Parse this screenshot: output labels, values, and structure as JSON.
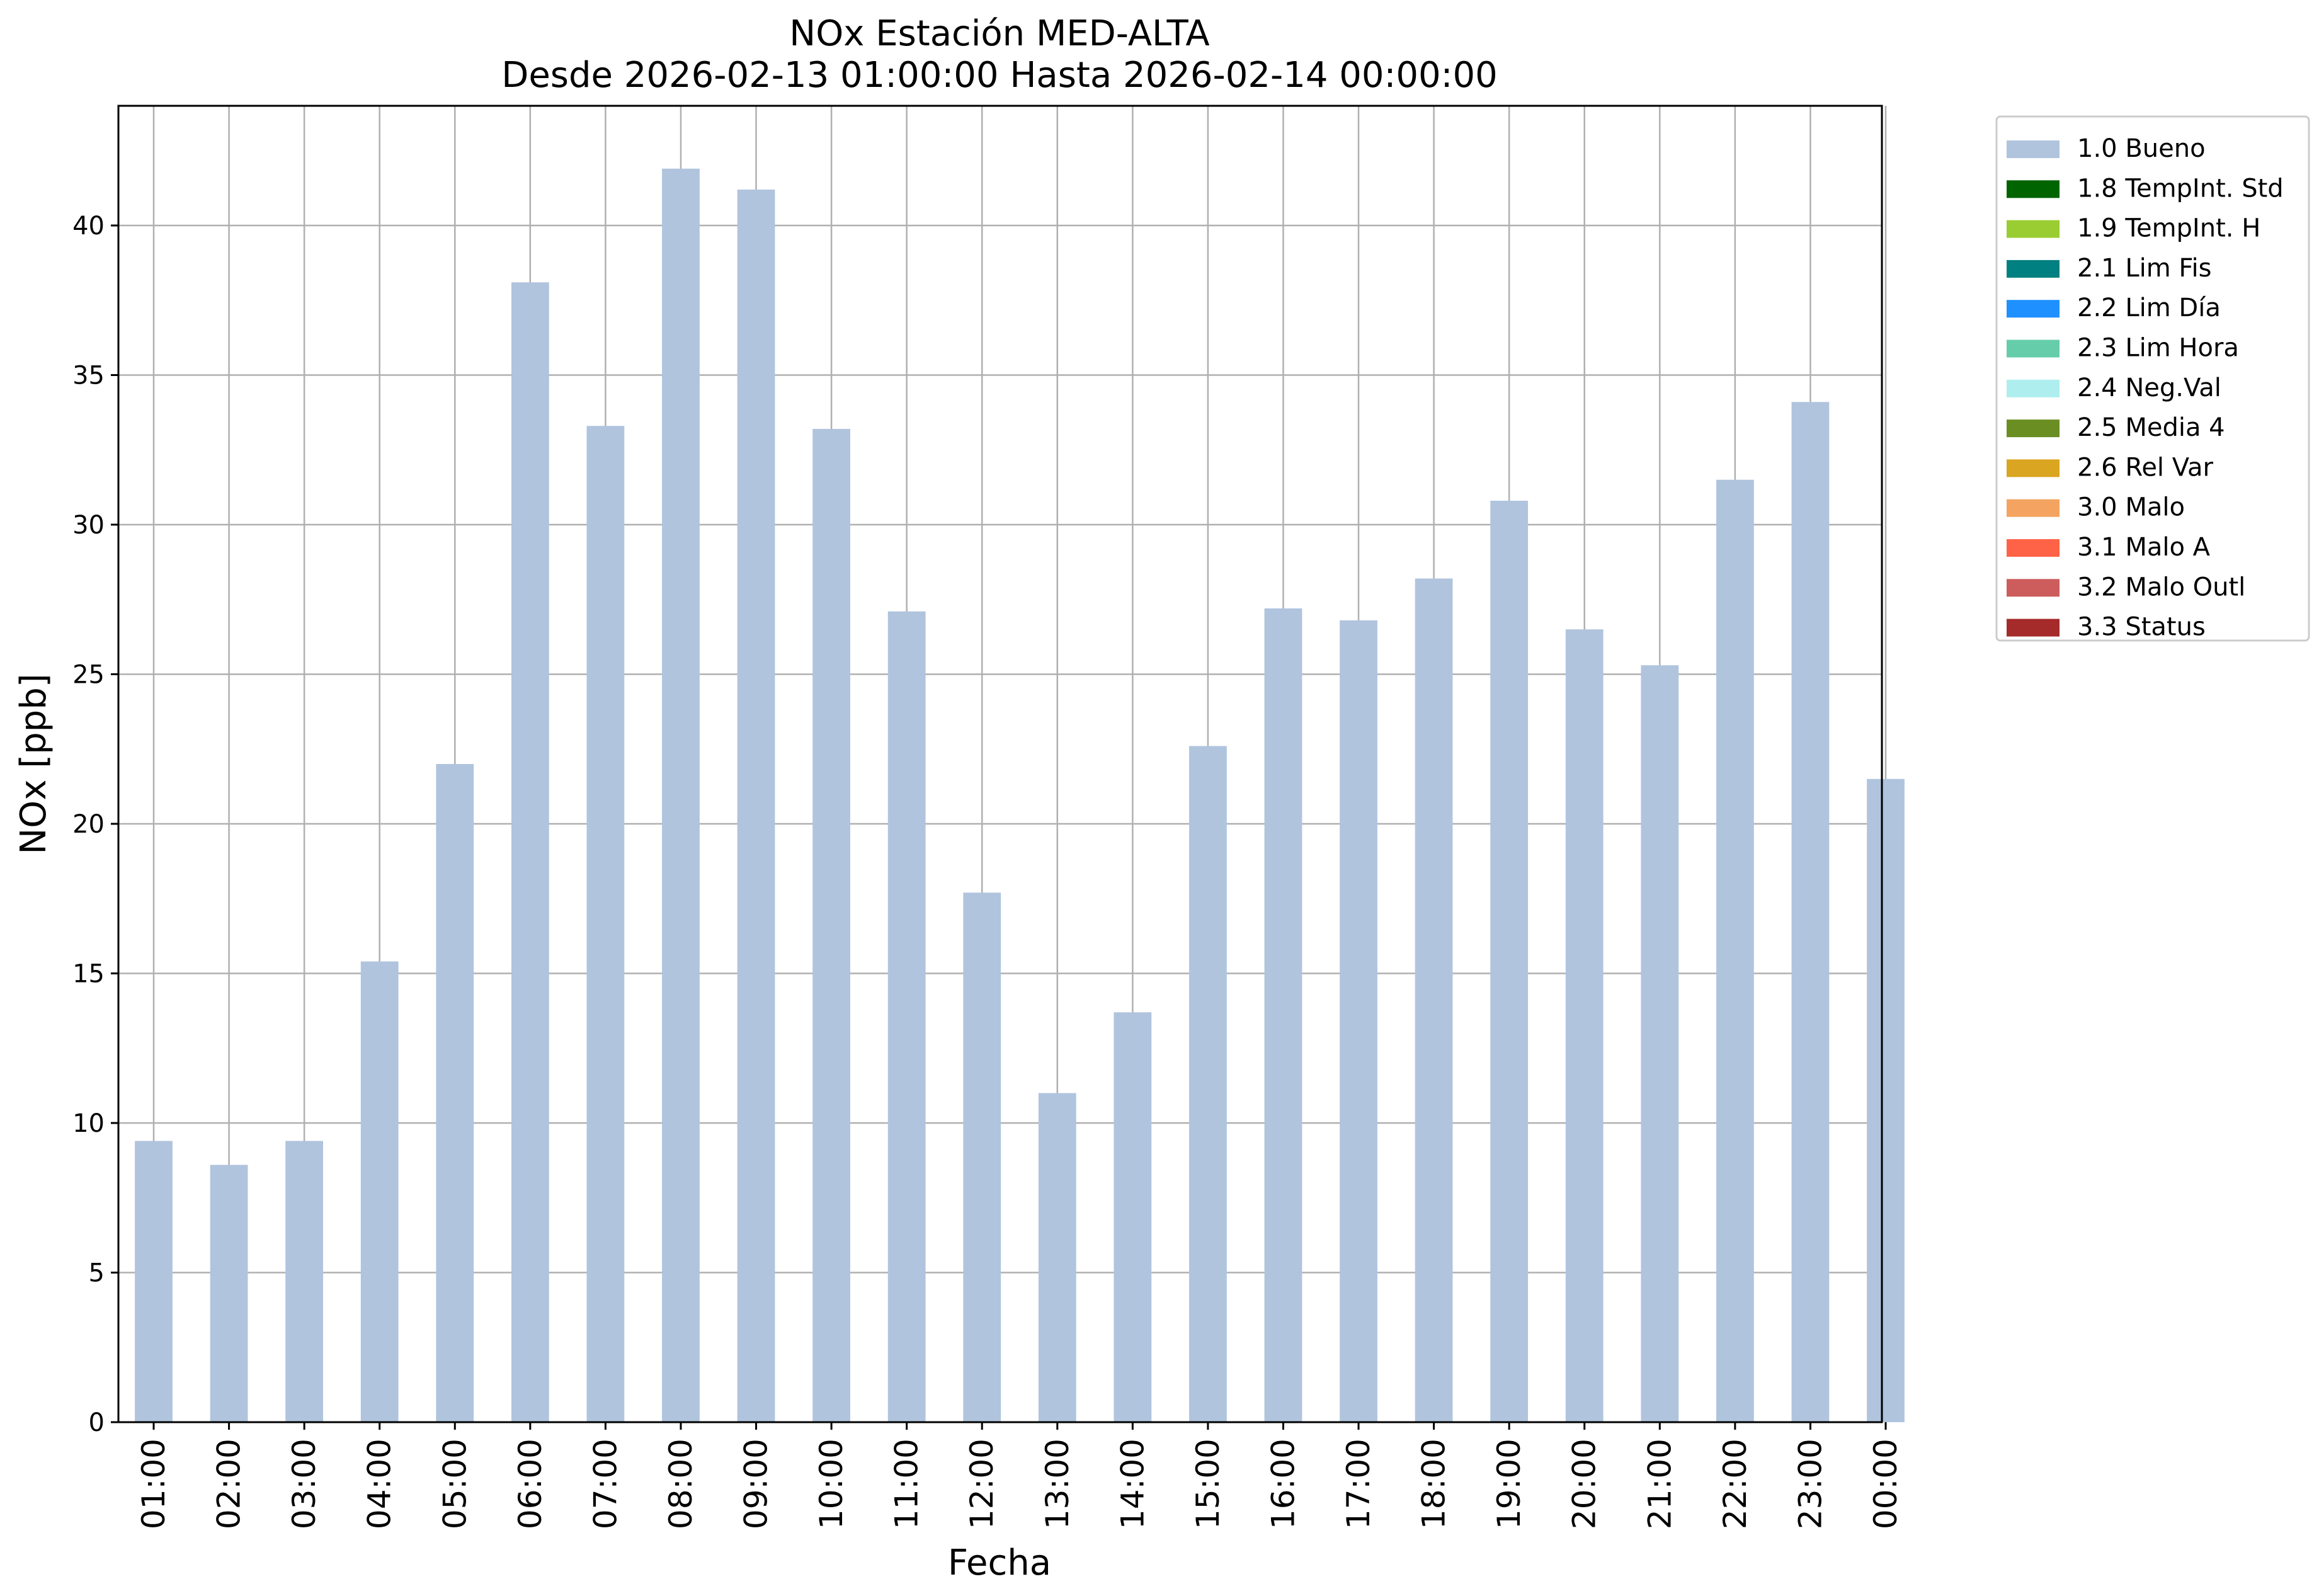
{
  "chart_data": {
    "type": "bar",
    "title": "NOx Estación MED-ALTA",
    "subtitle": "Desde 2026-02-13 01:00:00 Hasta 2026-02-14 00:00:00",
    "xlabel": "Fecha",
    "ylabel": "NOx [ppb]",
    "ylim": [
      0,
      44
    ],
    "yticks": [
      0,
      5,
      10,
      15,
      20,
      25,
      30,
      35,
      40
    ],
    "grid": true,
    "legend_position": "outside-top-right",
    "categories": [
      "01:00",
      "02:00",
      "03:00",
      "04:00",
      "05:00",
      "06:00",
      "07:00",
      "08:00",
      "09:00",
      "10:00",
      "11:00",
      "12:00",
      "13:00",
      "14:00",
      "15:00",
      "16:00",
      "17:00",
      "18:00",
      "19:00",
      "20:00",
      "21:00",
      "22:00",
      "23:00",
      "00:00"
    ],
    "series": [
      {
        "name": "1.0 Bueno",
        "color": "#b0c4de",
        "values": [
          9.4,
          8.6,
          9.4,
          15.4,
          22.0,
          38.1,
          33.3,
          41.9,
          41.2,
          33.2,
          27.1,
          17.7,
          11.0,
          13.7,
          22.6,
          27.2,
          26.8,
          28.2,
          30.8,
          26.5,
          25.3,
          31.5,
          34.1,
          21.5
        ]
      }
    ],
    "legend": [
      {
        "label": "1.0 Bueno",
        "color": "#b0c4de"
      },
      {
        "label": "1.8 TempInt. Std",
        "color": "#006400"
      },
      {
        "label": "1.9 TempInt. H",
        "color": "#9acd32"
      },
      {
        "label": "2.1 Lim Fis",
        "color": "#008080"
      },
      {
        "label": "2.2 Lim Día",
        "color": "#1e90ff"
      },
      {
        "label": "2.3 Lim Hora",
        "color": "#66cdaa"
      },
      {
        "label": "2.4 Neg.Val",
        "color": "#afeeee"
      },
      {
        "label": "2.5 Media 4",
        "color": "#6b8e23"
      },
      {
        "label": "2.6 Rel Var",
        "color": "#daa520"
      },
      {
        "label": "3.0 Malo",
        "color": "#f4a460"
      },
      {
        "label": "3.1 Malo A",
        "color": "#ff6347"
      },
      {
        "label": "3.2 Malo Outl",
        "color": "#cd5c5c"
      },
      {
        "label": "3.3 Status",
        "color": "#a52a2a"
      }
    ]
  }
}
